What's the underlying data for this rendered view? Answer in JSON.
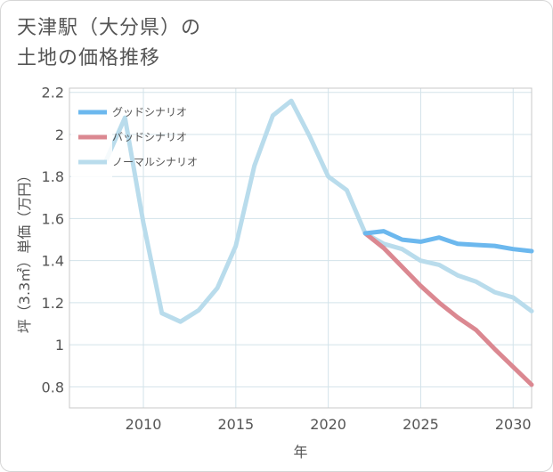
{
  "page": {
    "title_line1": "天津駅（大分県）の",
    "title_line2": "土地の価格推移"
  },
  "chart_data": {
    "type": "line",
    "title": "天津駅（大分県）の 土地の価格推移",
    "xlabel": "年",
    "ylabel": "坪（3.3㎡）単価（万円）",
    "xlim": [
      2006,
      2031
    ],
    "ylim": [
      0.7,
      2.22
    ],
    "xticks": [
      2010,
      2015,
      2020,
      2025,
      2030
    ],
    "yticks": [
      0.8,
      1,
      1.2,
      1.4,
      1.6,
      1.8,
      2,
      2.2
    ],
    "ytick_labels": [
      "0.8",
      "1",
      "1.2",
      "1.4",
      "1.6",
      "1.8",
      "2",
      "2.2"
    ],
    "legend_position": "top-left",
    "series": [
      {
        "name": "グッドシナリオ",
        "color": "#6cb8ee",
        "x": [
          2022,
          2023,
          2024,
          2025,
          2026,
          2027,
          2028,
          2029,
          2030,
          2031
        ],
        "y": [
          1.53,
          1.54,
          1.5,
          1.49,
          1.51,
          1.48,
          1.475,
          1.47,
          1.455,
          1.445
        ]
      },
      {
        "name": "バッドシナリオ",
        "color": "#db8891",
        "x": [
          2022,
          2023,
          2024,
          2025,
          2026,
          2027,
          2028,
          2029,
          2030,
          2031
        ],
        "y": [
          1.53,
          1.46,
          1.37,
          1.28,
          1.2,
          1.13,
          1.07,
          0.98,
          0.895,
          0.81
        ]
      },
      {
        "name": "ノーマルシナリオ",
        "color": "#b9dcec",
        "x": [
          2008,
          2009,
          2010,
          2011,
          2012,
          2013,
          2014,
          2015,
          2016,
          2017,
          2018,
          2019,
          2020,
          2021,
          2022,
          2023,
          2024,
          2025,
          2026,
          2027,
          2028,
          2029,
          2030,
          2031
        ],
        "y": [
          1.88,
          2.08,
          1.58,
          1.15,
          1.11,
          1.165,
          1.27,
          1.47,
          1.85,
          2.09,
          2.16,
          1.99,
          1.8,
          1.735,
          1.53,
          1.48,
          1.455,
          1.4,
          1.38,
          1.33,
          1.3,
          1.25,
          1.225,
          1.16
        ]
      }
    ]
  }
}
